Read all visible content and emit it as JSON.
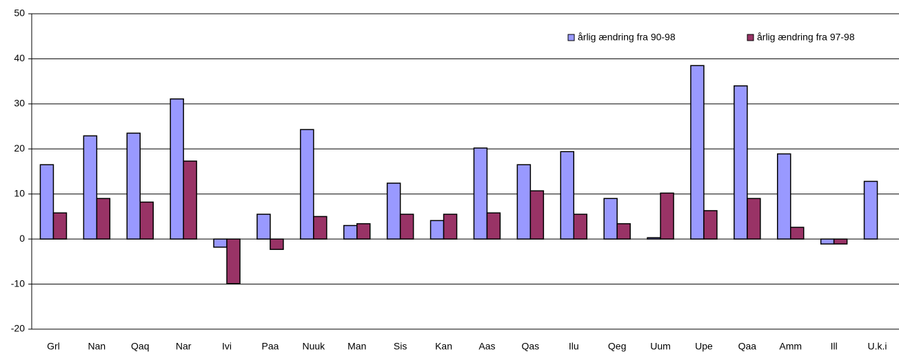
{
  "chart_data": {
    "type": "bar",
    "categories": [
      "Grl",
      "Nan",
      "Qaq",
      "Nar",
      "Ivi",
      "Paa",
      "Nuuk",
      "Man",
      "Sis",
      "Kan",
      "Aas",
      "Qas",
      "Ilu",
      "Qeg",
      "Uum",
      "Upe",
      "Qaa",
      "Amm",
      "Ill",
      "U.k.i"
    ],
    "series": [
      {
        "name": "årlig ændring fra 90-98",
        "color": "#9999ff",
        "values": [
          16.5,
          22.9,
          23.5,
          31.1,
          -1.8,
          5.5,
          24.3,
          3.0,
          12.4,
          4.1,
          20.2,
          16.5,
          19.4,
          9.0,
          0.3,
          38.5,
          34.0,
          18.9,
          -1.1,
          12.8
        ]
      },
      {
        "name": "årlig ændring fra 97-98",
        "color": "#993366",
        "values": [
          5.8,
          9.0,
          8.2,
          17.3,
          -9.9,
          -2.3,
          5.0,
          3.4,
          5.5,
          5.5,
          5.8,
          10.7,
          5.5,
          3.4,
          10.2,
          6.3,
          9.0,
          2.6,
          -1.1,
          null
        ]
      }
    ],
    "ylim": [
      -20,
      50
    ],
    "yticks": [
      -20,
      -10,
      0,
      10,
      20,
      30,
      40,
      50
    ],
    "grid": true,
    "legend": "upper-right"
  }
}
